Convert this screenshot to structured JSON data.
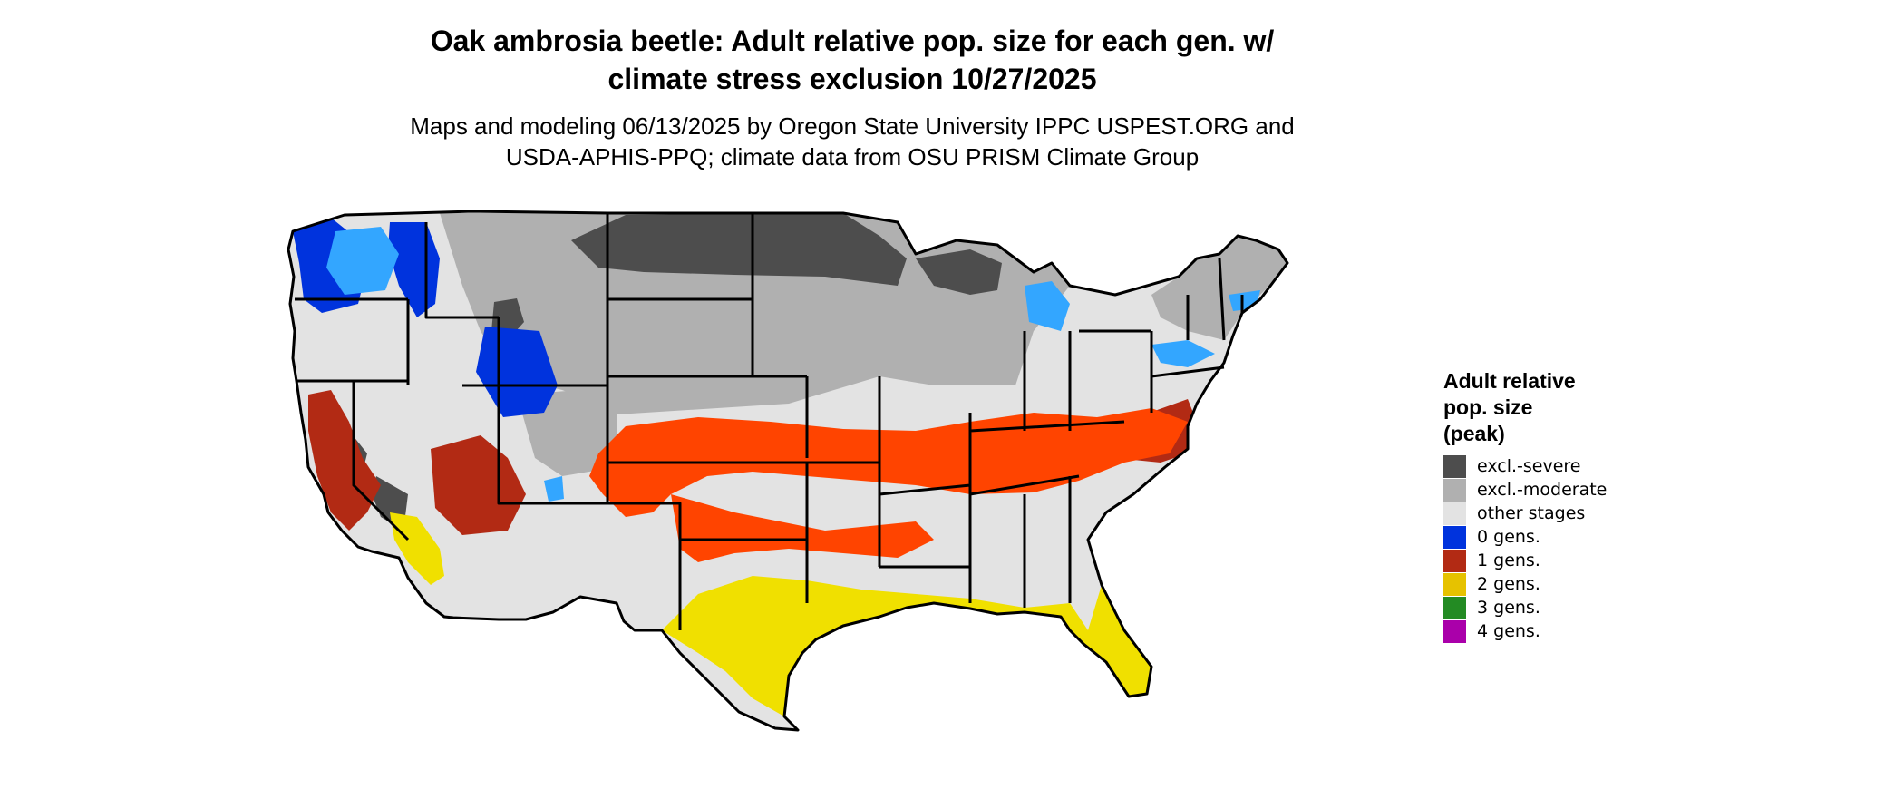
{
  "title_line1": "Oak ambrosia beetle: Adult relative pop. size for each gen. w/",
  "title_line2": "climate stress exclusion 10/27/2025",
  "subtitle_line1": "Maps and modeling 06/13/2025 by Oregon State University IPPC USPEST.ORG and",
  "subtitle_line2": "USDA-APHIS-PPQ; climate data from OSU PRISM Climate Group",
  "legend": {
    "title_line1": "Adult relative",
    "title_line2": "pop. size",
    "title_line3": "(peak)",
    "items": [
      {
        "label": "excl.-severe",
        "color": "#4d4d4d"
      },
      {
        "label": "excl.-moderate",
        "color": "#b0b0b0"
      },
      {
        "label": "other stages",
        "color": "#e3e3e3"
      },
      {
        "label": "0 gens.",
        "color": "#0033dd"
      },
      {
        "label": "1 gens.",
        "color": "#b22a14"
      },
      {
        "label": "2 gens.",
        "color": "#e6c200"
      },
      {
        "label": "3 gens.",
        "color": "#238b23"
      },
      {
        "label": "4 gens.",
        "color": "#aa00aa"
      }
    ]
  },
  "map_colors": {
    "background": "#e3e3e3",
    "excl_severe": "#4d4d4d",
    "excl_moderate": "#b0b0b0",
    "zero_gens": "#0033dd",
    "zero_gens_light": "#33a6ff",
    "one_gens": "#b22a14",
    "one_gens_bright": "#ff4400",
    "two_gens": "#f0e000",
    "two_gens_dark": "#c8b400",
    "borders": "#000000"
  }
}
